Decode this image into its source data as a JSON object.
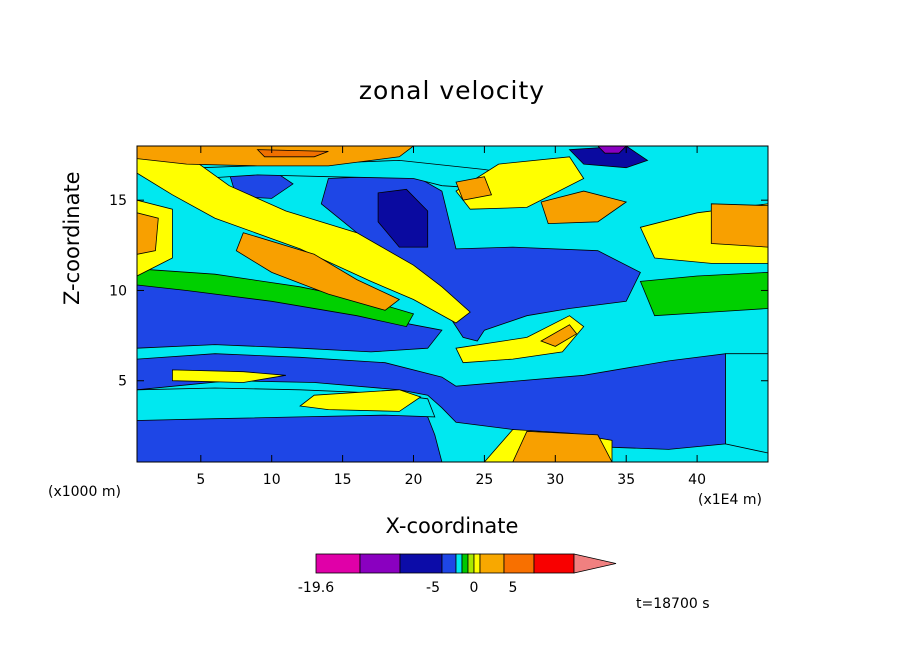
{
  "chart_data": {
    "type": "heatmap",
    "title": "zonal velocity",
    "xlabel": "X-coordinate",
    "ylabel": "Z-coordinate",
    "x_unit": "(x1000 m)",
    "x_scale_note": "(x1E4 m)",
    "x_ticks": [
      5,
      10,
      15,
      20,
      25,
      30,
      35,
      40
    ],
    "y_ticks": [
      5,
      10,
      15
    ],
    "xlim": [
      0.5,
      45
    ],
    "ylim": [
      0.5,
      18
    ],
    "time_label": "t=18700 s",
    "colorbar": {
      "labels": [
        "-19.6",
        "-5",
        "0",
        "5"
      ],
      "colors": [
        "#e000a8",
        "#8a00c0",
        "#0c0ca8",
        "#1e46e6",
        "#00e8f0",
        "#00c800",
        "#a8e800",
        "#ffff00",
        "#f8a800",
        "#f87000",
        "#f80000",
        "#f08080"
      ]
    },
    "palette": {
      "deep_blue": "#0a0aa0",
      "blue": "#1e46e6",
      "cyan": "#00e8f0",
      "green": "#00d000",
      "yellow": "#ffff00",
      "orange": "#f8a000",
      "dark_orange": "#f07000",
      "purple": "#8a00c0"
    },
    "regions": [
      {
        "level": "blue",
        "polygon": [
          [
            0.5,
            2.8
          ],
          [
            6,
            3.4
          ],
          [
            12,
            3.7
          ],
          [
            17,
            3.5
          ],
          [
            21,
            3
          ],
          [
            21.5,
            2
          ],
          [
            22,
            0.5
          ],
          [
            0.5,
            0.5
          ]
        ]
      },
      {
        "level": "blue",
        "polygon": [
          [
            0.5,
            6.2
          ],
          [
            6,
            6.5
          ],
          [
            12,
            6.3
          ],
          [
            18,
            6.0
          ],
          [
            22,
            5.2
          ],
          [
            23,
            4.7
          ],
          [
            32,
            5.3
          ],
          [
            38,
            6.1
          ],
          [
            42,
            6.5
          ],
          [
            42,
            1.5
          ],
          [
            38,
            1.2
          ],
          [
            31,
            1.4
          ],
          [
            29,
            1.8
          ],
          [
            27,
            2.3
          ],
          [
            23,
            2.7
          ],
          [
            22,
            3.5
          ],
          [
            21,
            4.2
          ],
          [
            19,
            4.5
          ],
          [
            13,
            4.9
          ],
          [
            7,
            5.0
          ],
          [
            0.5,
            4.5
          ]
        ]
      },
      {
        "level": "blue",
        "polygon": [
          [
            0.5,
            10.6
          ],
          [
            5,
            10.3
          ],
          [
            11,
            9.5
          ],
          [
            16,
            8.7
          ],
          [
            20,
            8.1
          ],
          [
            22,
            7.8
          ],
          [
            21,
            6.8
          ],
          [
            17,
            6.6
          ],
          [
            12,
            6.8
          ],
          [
            6,
            7.0
          ],
          [
            0.5,
            6.8
          ]
        ]
      },
      {
        "level": "blue",
        "polygon": [
          [
            14,
            16.2
          ],
          [
            20,
            16.4
          ],
          [
            22,
            15.5
          ],
          [
            23,
            12.3
          ],
          [
            27,
            12.4
          ],
          [
            33,
            12.2
          ],
          [
            36,
            11.0
          ],
          [
            35,
            9.4
          ],
          [
            31,
            9.0
          ],
          [
            28,
            8.6
          ],
          [
            25,
            7.8
          ],
          [
            24.5,
            7.2
          ],
          [
            23.5,
            7.4
          ],
          [
            21.5,
            9.8
          ],
          [
            19,
            11.8
          ],
          [
            16,
            13.2
          ],
          [
            13.5,
            14.8
          ]
        ]
      },
      {
        "level": "blue",
        "polygon": [
          [
            7,
            16.5
          ],
          [
            10,
            16.7
          ],
          [
            11.5,
            15.9
          ],
          [
            10,
            15.1
          ],
          [
            7.5,
            15.2
          ]
        ]
      },
      {
        "level": "deep_blue",
        "polygon": [
          [
            17.5,
            15.4
          ],
          [
            19.5,
            15.6
          ],
          [
            21,
            14.4
          ],
          [
            21,
            12.4
          ],
          [
            19,
            12.4
          ],
          [
            17.5,
            13.8
          ]
        ]
      },
      {
        "level": "deep_blue",
        "polygon": [
          [
            31,
            17.8
          ],
          [
            35,
            18
          ],
          [
            36.5,
            17.2
          ],
          [
            35,
            16.8
          ],
          [
            32,
            17
          ]
        ]
      },
      {
        "level": "green",
        "polygon": [
          [
            4,
            4.3
          ],
          [
            9,
            4.2
          ],
          [
            14,
            3.9
          ],
          [
            19,
            4.0
          ],
          [
            21,
            3.5
          ],
          [
            19,
            3.2
          ],
          [
            14,
            3.3
          ],
          [
            8,
            3.6
          ],
          [
            4,
            3.8
          ]
        ]
      },
      {
        "level": "green",
        "polygon": [
          [
            0.5,
            11.2
          ],
          [
            6,
            10.9
          ],
          [
            12,
            10.2
          ],
          [
            17,
            9.4
          ],
          [
            20,
            8.7
          ],
          [
            19.5,
            8.0
          ],
          [
            16,
            8.6
          ],
          [
            10,
            9.4
          ],
          [
            4,
            10.0
          ],
          [
            0.5,
            10.3
          ]
        ]
      },
      {
        "level": "green",
        "polygon": [
          [
            36,
            10.5
          ],
          [
            40,
            10.8
          ],
          [
            45,
            11.0
          ],
          [
            45,
            9.0
          ],
          [
            41,
            8.8
          ],
          [
            37,
            8.6
          ]
        ]
      },
      {
        "level": "cyan",
        "polygon": [
          [
            0.5,
            4.5
          ],
          [
            6,
            4.6
          ],
          [
            12,
            4.5
          ],
          [
            18,
            4.3
          ],
          [
            21,
            4.0
          ],
          [
            21.5,
            3.0
          ],
          [
            18,
            3.1
          ],
          [
            12,
            3.0
          ],
          [
            6,
            2.9
          ],
          [
            0.5,
            2.8
          ]
        ]
      },
      {
        "level": "cyan",
        "polygon": [
          [
            42,
            6.5
          ],
          [
            45,
            6.5
          ],
          [
            45,
            1.0
          ],
          [
            42,
            1.5
          ]
        ]
      },
      {
        "level": "cyan",
        "polygon": [
          [
            5,
            16.8
          ],
          [
            12,
            17.0
          ],
          [
            19,
            17.2
          ],
          [
            25,
            16.7
          ],
          [
            29,
            16.2
          ],
          [
            26,
            15.6
          ],
          [
            22,
            15.8
          ],
          [
            20,
            16.2
          ],
          [
            14,
            16.3
          ],
          [
            9,
            16.4
          ],
          [
            5,
            16.2
          ]
        ]
      },
      {
        "level": "yellow",
        "polygon": [
          [
            3,
            5.6
          ],
          [
            8,
            5.5
          ],
          [
            11,
            5.3
          ],
          [
            8,
            4.9
          ],
          [
            3,
            5.0
          ]
        ]
      },
      {
        "level": "yellow",
        "polygon": [
          [
            13,
            4.2
          ],
          [
            19,
            4.5
          ],
          [
            20.5,
            4.1
          ],
          [
            19,
            3.3
          ],
          [
            14,
            3.4
          ],
          [
            12,
            3.6
          ]
        ]
      },
      {
        "level": "yellow",
        "polygon": [
          [
            23,
            6.8
          ],
          [
            28,
            7.4
          ],
          [
            31,
            8.6
          ],
          [
            32,
            8.0
          ],
          [
            30.5,
            6.6
          ],
          [
            27,
            6.2
          ],
          [
            23.5,
            6.0
          ]
        ]
      },
      {
        "level": "yellow",
        "polygon": [
          [
            0.5,
            16.5
          ],
          [
            3,
            15.3
          ],
          [
            6,
            14.0
          ],
          [
            12,
            12.3
          ],
          [
            17,
            10.5
          ],
          [
            20,
            9.5
          ],
          [
            23,
            8.2
          ],
          [
            24,
            8.8
          ],
          [
            22,
            10.2
          ],
          [
            20,
            11.4
          ],
          [
            16,
            13.2
          ],
          [
            11,
            14.4
          ],
          [
            7,
            15.8
          ],
          [
            4,
            17.5
          ],
          [
            0.5,
            18
          ]
        ]
      },
      {
        "level": "yellow",
        "polygon": [
          [
            0.5,
            10.8
          ],
          [
            3,
            11.8
          ],
          [
            3,
            14.5
          ],
          [
            0.5,
            15.0
          ]
        ]
      },
      {
        "level": "yellow",
        "polygon": [
          [
            23,
            15.5
          ],
          [
            26,
            17.0
          ],
          [
            31,
            17.4
          ],
          [
            32,
            16.2
          ],
          [
            28,
            14.6
          ],
          [
            24,
            14.5
          ]
        ]
      },
      {
        "level": "yellow",
        "polygon": [
          [
            36,
            13.5
          ],
          [
            40,
            14.3
          ],
          [
            45,
            14.8
          ],
          [
            45,
            11.5
          ],
          [
            41,
            11.5
          ],
          [
            37,
            11.8
          ]
        ]
      },
      {
        "level": "yellow",
        "polygon": [
          [
            27,
            2.3
          ],
          [
            31,
            2.1
          ],
          [
            34,
            1.7
          ],
          [
            34,
            0.5
          ],
          [
            25,
            0.5
          ]
        ]
      },
      {
        "level": "orange",
        "polygon": [
          [
            8,
            13.2
          ],
          [
            13,
            12.0
          ],
          [
            16,
            10.6
          ],
          [
            19,
            9.5
          ],
          [
            18,
            8.9
          ],
          [
            14,
            9.8
          ],
          [
            10,
            11.0
          ],
          [
            7.5,
            12.2
          ]
        ]
      },
      {
        "level": "orange",
        "polygon": [
          [
            0.5,
            12.0
          ],
          [
            1.8,
            12.2
          ],
          [
            2,
            14.0
          ],
          [
            0.5,
            14.3
          ]
        ]
      },
      {
        "level": "orange",
        "polygon": [
          [
            29,
            14.9
          ],
          [
            32,
            15.5
          ],
          [
            35,
            14.9
          ],
          [
            33,
            13.8
          ],
          [
            29.5,
            13.7
          ]
        ]
      },
      {
        "level": "orange",
        "polygon": [
          [
            41,
            14.8
          ],
          [
            45,
            14.7
          ],
          [
            45,
            12.4
          ],
          [
            41,
            12.6
          ]
        ]
      },
      {
        "level": "orange",
        "polygon": [
          [
            23,
            16.0
          ],
          [
            25,
            16.3
          ],
          [
            25.5,
            15.3
          ],
          [
            23.5,
            15.0
          ]
        ]
      },
      {
        "level": "orange",
        "polygon": [
          [
            29,
            7.2
          ],
          [
            31,
            8.1
          ],
          [
            31.5,
            7.6
          ],
          [
            30,
            6.9
          ]
        ]
      },
      {
        "level": "orange",
        "polygon": [
          [
            28,
            2.2
          ],
          [
            33,
            2.0
          ],
          [
            34,
            0.5
          ],
          [
            27,
            0.5
          ]
        ]
      },
      {
        "level": "orange",
        "polygon": [
          [
            0.5,
            18
          ],
          [
            20,
            18
          ],
          [
            19,
            17.4
          ],
          [
            14,
            16.9
          ],
          [
            9,
            16.9
          ],
          [
            4,
            17.0
          ],
          [
            0.5,
            17.3
          ]
        ]
      },
      {
        "level": "dark_orange",
        "polygon": [
          [
            9,
            17.8
          ],
          [
            14,
            17.7
          ],
          [
            13,
            17.4
          ],
          [
            9.5,
            17.4
          ]
        ]
      },
      {
        "level": "purple",
        "polygon": [
          [
            33,
            18
          ],
          [
            35,
            18
          ],
          [
            34.5,
            17.6
          ],
          [
            33.5,
            17.6
          ]
        ]
      }
    ]
  }
}
